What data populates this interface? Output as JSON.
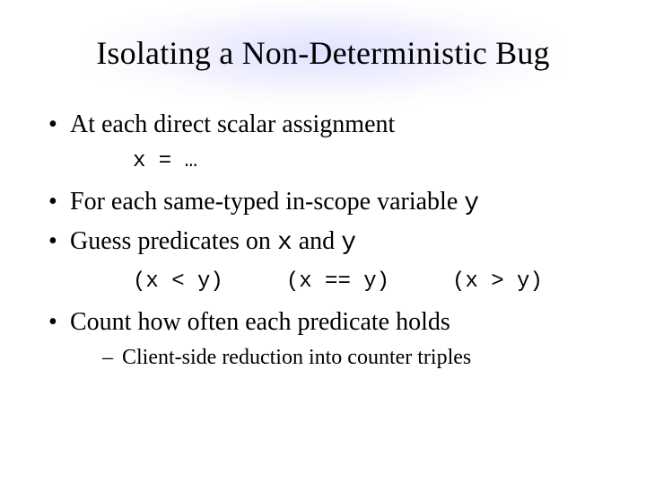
{
  "slide": {
    "title": "Isolating a Non-Deterministic Bug",
    "title_fontsize": 36,
    "body_fontsize": 28,
    "sub_fontsize": 24,
    "code_fontsize": 24,
    "font_family_body": "Times New Roman",
    "font_family_code": "Courier New",
    "background_color": "#ffffff",
    "text_color": "#000000",
    "glow_color": "#c8c8ff",
    "bullets": {
      "b1": {
        "text": "At each direct scalar assignment",
        "code": "x = …"
      },
      "b2": {
        "prefix": "For each same-typed in-scope variable ",
        "code_y": "y"
      },
      "b3": {
        "prefix": "Guess predicates on ",
        "code_x": "x",
        "mid": " and ",
        "code_y": "y",
        "predicates": {
          "lt": "(x < y)",
          "eq": "(x == y)",
          "gt": "(x > y)"
        }
      },
      "b4": {
        "text": "Count how often each predicate holds",
        "sub": "Client-side reduction into counter triples"
      }
    }
  }
}
